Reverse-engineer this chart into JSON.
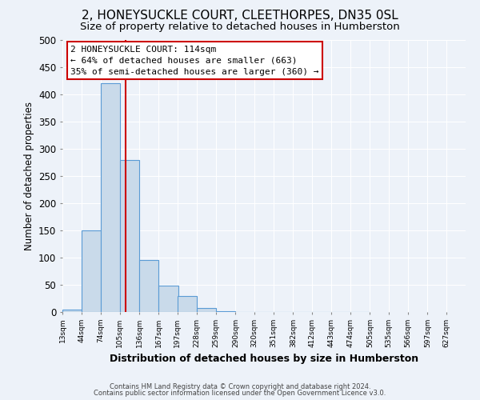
{
  "title": "2, HONEYSUCKLE COURT, CLEETHORPES, DN35 0SL",
  "subtitle": "Size of property relative to detached houses in Humberston",
  "xlabel": "Distribution of detached houses by size in Humberston",
  "ylabel": "Number of detached properties",
  "bar_values": [
    5,
    150,
    420,
    280,
    95,
    48,
    30,
    8,
    2,
    0,
    0,
    0,
    0,
    0,
    0,
    0
  ],
  "bar_left_edges": [
    13,
    44,
    74,
    105,
    136,
    167,
    197,
    228,
    259,
    290,
    320,
    351,
    382,
    412,
    443,
    474
  ],
  "bin_width": 31,
  "x_tick_labels": [
    "13sqm",
    "44sqm",
    "74sqm",
    "105sqm",
    "136sqm",
    "167sqm",
    "197sqm",
    "228sqm",
    "259sqm",
    "290sqm",
    "320sqm",
    "351sqm",
    "382sqm",
    "412sqm",
    "443sqm",
    "474sqm",
    "505sqm",
    "535sqm",
    "566sqm",
    "597sqm",
    "627sqm"
  ],
  "x_tick_positions": [
    13,
    44,
    74,
    105,
    136,
    167,
    197,
    228,
    259,
    290,
    320,
    351,
    382,
    412,
    443,
    474,
    505,
    535,
    566,
    597,
    627
  ],
  "bar_color": "#c9daea",
  "bar_edge_color": "#5b9bd5",
  "vline_x": 114,
  "vline_color": "#cc0000",
  "ylim": [
    0,
    500
  ],
  "yticks": [
    0,
    50,
    100,
    150,
    200,
    250,
    300,
    350,
    400,
    450,
    500
  ],
  "annotation_title": "2 HONEYSUCKLE COURT: 114sqm",
  "annotation_line1": "← 64% of detached houses are smaller (663)",
  "annotation_line2": "35% of semi-detached houses are larger (360) →",
  "footer_line1": "Contains HM Land Registry data © Crown copyright and database right 2024.",
  "footer_line2": "Contains public sector information licensed under the Open Government Licence v3.0.",
  "background_color": "#edf2f9",
  "plot_background_color": "#edf2f9",
  "grid_color": "#ffffff",
  "title_fontsize": 11,
  "subtitle_fontsize": 9.5
}
